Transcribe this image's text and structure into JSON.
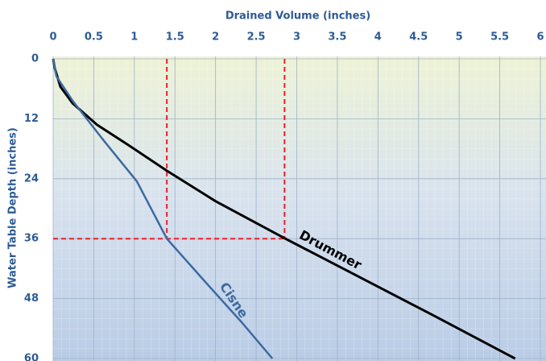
{
  "chart_data": {
    "type": "line",
    "x_label": "Drained Volume (inches)",
    "y_label": "Water Table Depth (inches)",
    "xlim": [
      0,
      6
    ],
    "xticks": [
      0,
      0.5,
      1,
      1.5,
      2,
      2.5,
      3,
      3.5,
      4,
      4.5,
      5,
      5.5,
      6
    ],
    "ylim": [
      0,
      60
    ],
    "yticks": [
      0,
      12,
      24,
      36,
      48,
      60
    ],
    "y_inverted": true,
    "x_axis_position": "top",
    "grid": true,
    "series": [
      {
        "name": "Drummer",
        "color": "#000000",
        "x": [
          0,
          0.02,
          0.09,
          0.24,
          0.54,
          0.93,
          1.4,
          2.0,
          2.86,
          3.81,
          4.7,
          5.69
        ],
        "y": [
          0,
          1.9,
          5.6,
          8.9,
          13.2,
          17.3,
          22.4,
          28.5,
          36,
          44,
          51.5,
          60
        ]
      },
      {
        "name": "Cisne",
        "color": "#3d6aa0",
        "x": [
          0,
          0.04,
          0.24,
          0.63,
          1.03,
          1.4,
          1.92,
          2.32,
          2.7
        ],
        "y": [
          0,
          3.5,
          8.4,
          16.5,
          24.5,
          36,
          45.5,
          52.7,
          60
        ]
      }
    ],
    "reference_lines": {
      "color": "#e8202a",
      "x": [
        [
          1.4,
          1.4
        ],
        [
          2.85,
          2.85
        ],
        [
          0,
          2.85
        ]
      ],
      "y": [
        [
          0,
          36
        ],
        [
          0,
          36
        ],
        [
          36,
          36
        ]
      ]
    }
  }
}
